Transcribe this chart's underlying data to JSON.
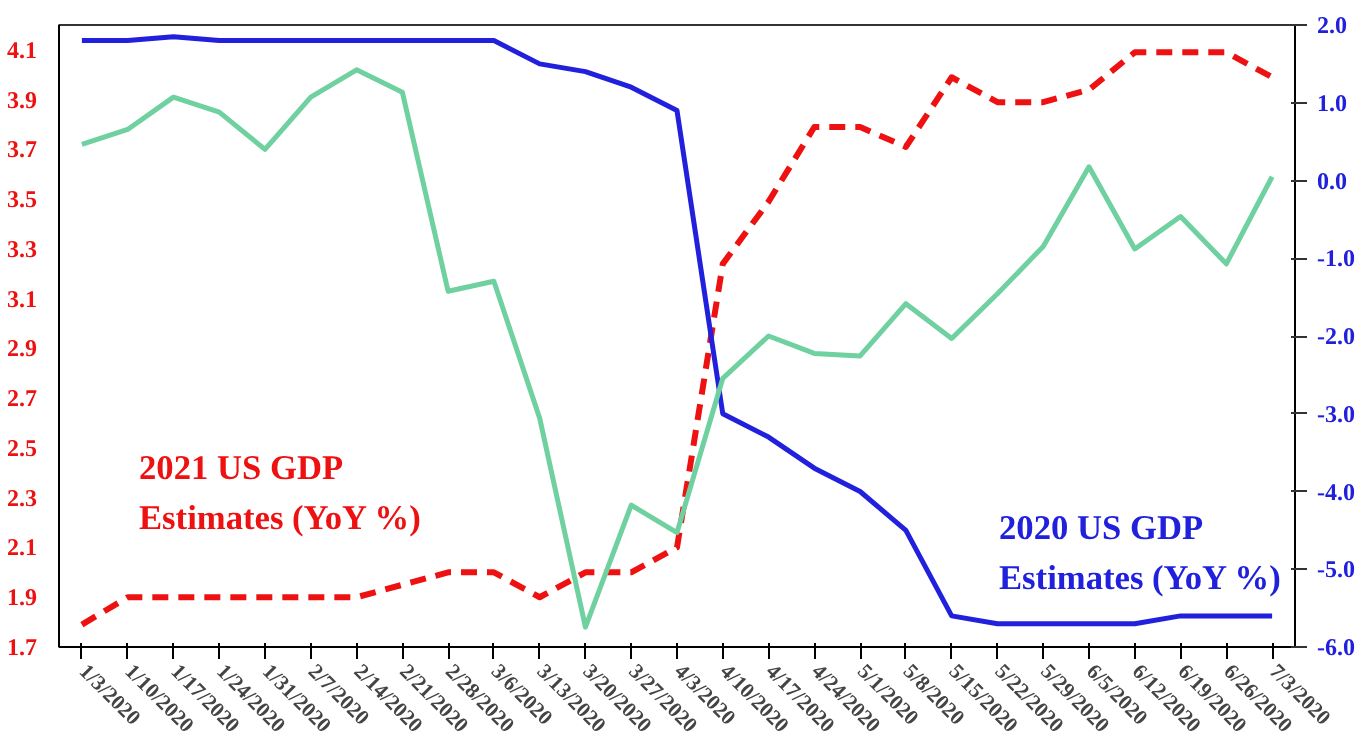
{
  "chart_data": {
    "type": "line",
    "categories": [
      "1/3/2020",
      "1/10/2020",
      "1/17/2020",
      "1/24/2020",
      "1/31/2020",
      "2/7/2020",
      "2/14/2020",
      "2/21/2020",
      "2/28/2020",
      "3/6/2020",
      "3/13/2020",
      "3/20/2020",
      "3/27/2020",
      "4/3/2020",
      "4/10/2020",
      "4/17/2020",
      "4/24/2020",
      "5/1/2020",
      "5/8/2020",
      "5/15/2020",
      "5/22/2020",
      "5/29/2020",
      "6/5/2020",
      "6/12/2020",
      "6/19/2020",
      "6/26/2020",
      "7/3/2020"
    ],
    "series": [
      {
        "name": "2021 US GDP Estimates (YoY %)",
        "color": "#ee1111",
        "line_style": "dashed",
        "values": [
          1.79,
          1.9,
          1.9,
          1.9,
          1.9,
          1.9,
          1.9,
          1.95,
          2.0,
          2.0,
          1.9,
          2.0,
          2.0,
          2.1,
          3.24,
          3.49,
          3.79,
          3.79,
          3.71,
          3.99,
          3.89,
          3.89,
          3.94,
          4.09,
          4.09,
          4.09,
          3.99
        ]
      },
      {
        "name": "2020 US GDP Estimates (YoY %)",
        "color": "#2020dd",
        "axis": "y2",
        "line_style": "solid",
        "values": [
          1.8,
          1.8,
          1.85,
          1.8,
          1.8,
          1.8,
          1.8,
          1.8,
          1.8,
          1.8,
          1.5,
          1.4,
          1.2,
          0.9,
          -3.0,
          -3.3,
          -3.7,
          -4.0,
          -4.5,
          -5.6,
          -5.7,
          -5.7,
          -5.7,
          -5.7,
          -5.6,
          -5.6,
          -5.6
        ]
      },
      {
        "color": "#6fd0a0",
        "line_style": "solid",
        "values": [
          3.72,
          3.78,
          3.91,
          3.85,
          3.7,
          3.91,
          4.02,
          3.93,
          3.13,
          3.17,
          2.62,
          1.78,
          2.27,
          2.16,
          2.78,
          2.95,
          2.88,
          2.87,
          3.08,
          2.94,
          3.12,
          3.31,
          3.63,
          3.3,
          3.43,
          3.24,
          3.59
        ]
      }
    ],
    "ylim": [
      1.7,
      4.2
    ],
    "yticks": [
      1.7,
      1.9,
      2.1,
      2.3,
      2.5,
      2.7,
      2.9,
      3.1,
      3.3,
      3.5,
      3.7,
      3.9,
      4.1
    ],
    "y2lim": [
      -6.0,
      2.0
    ],
    "y2ticks": [
      {
        "value": -6,
        "label": "-6.0"
      },
      {
        "value": -5,
        "label": "-5.0"
      },
      {
        "value": -4,
        "label": "-4.0"
      },
      {
        "value": -3,
        "label": "-3.0"
      },
      {
        "value": -2,
        "label": "-2.0"
      },
      {
        "value": -1,
        "label": "-1.0"
      },
      {
        "value": 0,
        "label": "0.0"
      },
      {
        "value": 1,
        "label": "1.0"
      },
      {
        "value": 2,
        "label": "2.0"
      }
    ],
    "grid": false,
    "marker": "none"
  }
}
